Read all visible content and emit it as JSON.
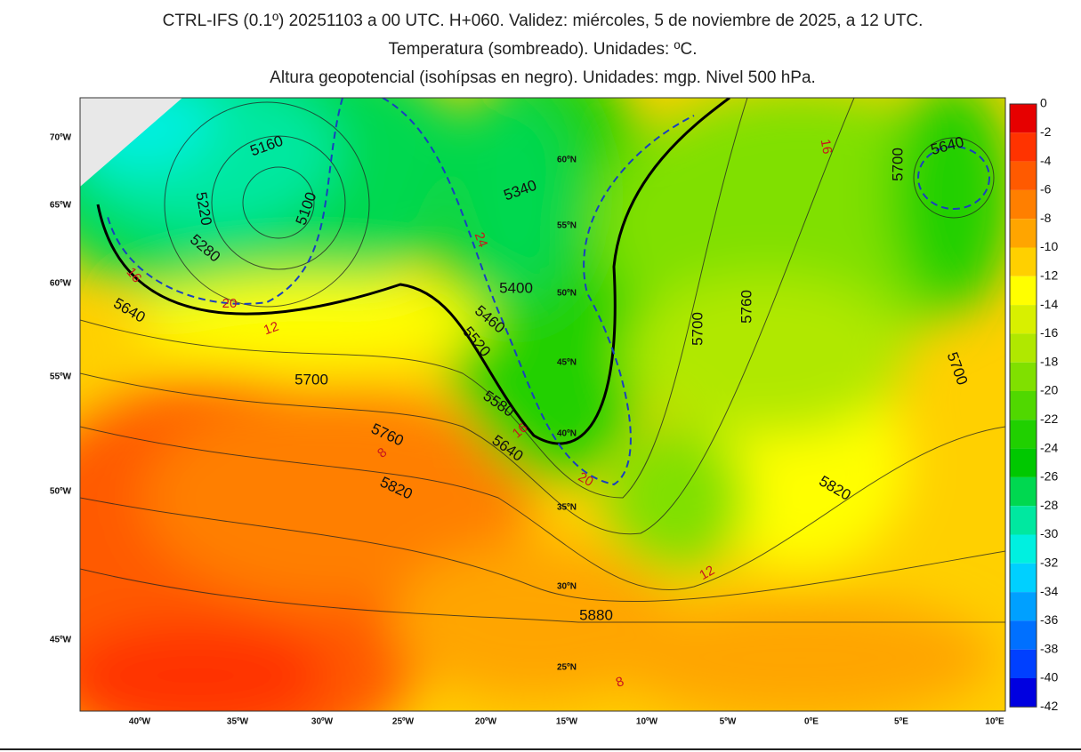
{
  "header": {
    "lines": [
      "CTRL-IFS (0.1º) 20251103 a 00 UTC. H+060. Validez: miércoles, 5 de noviembre de 2025, a 12 UTC.",
      "Temperatura (sombreado). Unidades: ºC.",
      "Altura geopotencial (isohípsas en negro). Unidades: mgp. Nivel 500 hPa."
    ]
  },
  "colorbar": {
    "labels": [
      "0",
      "-2",
      "-4",
      "-6",
      "-8",
      "-10",
      "-12",
      "-14",
      "-16",
      "-18",
      "-20",
      "-22",
      "-24",
      "-26",
      "-28",
      "-30",
      "-32",
      "-34",
      "-36",
      "-38",
      "-40",
      "-42"
    ],
    "colors": [
      "#e60000",
      "#ff3300",
      "#ff5a00",
      "#ff7f00",
      "#ffa500",
      "#ffd000",
      "#ffff00",
      "#d8f000",
      "#b0e800",
      "#80e000",
      "#50d800",
      "#20d000",
      "#00c800",
      "#00d850",
      "#00e8a0",
      "#00f0e0",
      "#00d0ff",
      "#00a0ff",
      "#0070ff",
      "#0040ff",
      "#0000e0"
    ]
  },
  "map": {
    "lon_labels": [
      "40ºW",
      "35ºW",
      "30ºW",
      "25ºW",
      "20ºW",
      "15ºW",
      "10ºW",
      "5ºW",
      "0ºE",
      "5ºE",
      "10ºE"
    ],
    "lat_labels": [
      "70ºW",
      "65ºW",
      "60ºW",
      "55ºW",
      "50ºW",
      "45ºW"
    ],
    "inner_lat_labels": [
      "60ºN",
      "55ºN",
      "50ºN",
      "45ºN",
      "40ºN",
      "35ºN",
      "30ºN",
      "25ºN"
    ],
    "height_labels": [
      "5160",
      "5100",
      "5220",
      "5280",
      "5340",
      "5400",
      "5460",
      "5520",
      "5580",
      "5640",
      "5700",
      "5760",
      "5820",
      "5880",
      "5640",
      "5700",
      "5640",
      "5760",
      "5700",
      "5820",
      "5700"
    ],
    "temp_labels": [
      "12",
      "16",
      "20",
      "24",
      "16",
      "20",
      "12",
      "8",
      "16",
      "8"
    ]
  }
}
